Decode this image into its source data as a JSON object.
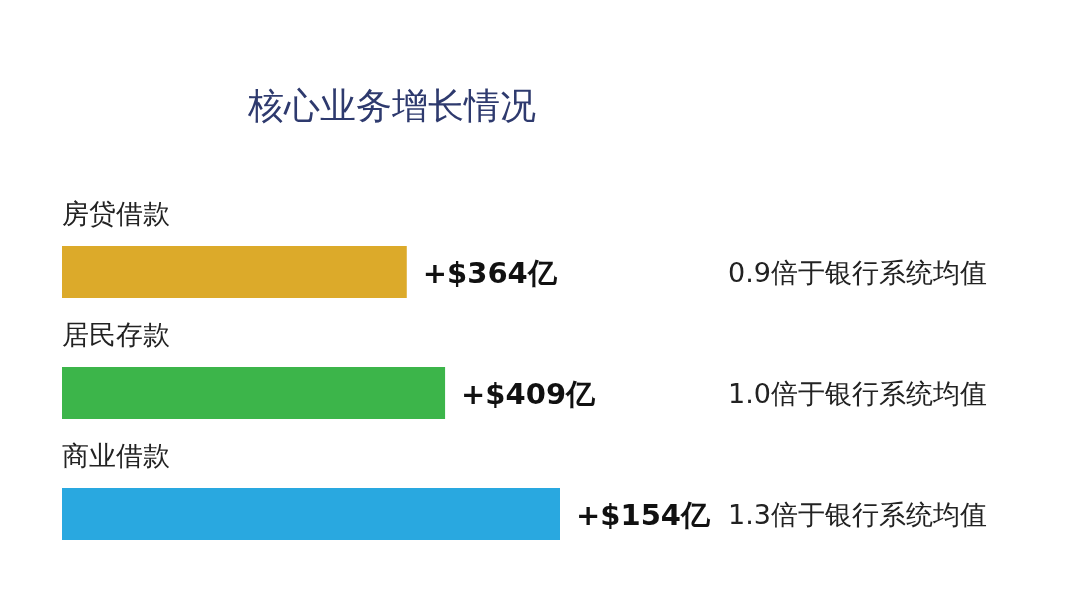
{
  "chart_data": {
    "type": "bar",
    "orientation": "horizontal",
    "title": "核心业务增长情况",
    "categories": [
      "房贷借款",
      "居民存款",
      "商业借款"
    ],
    "values": [
      0.9,
      1.0,
      1.3
    ],
    "colors": [
      "#dcaa2a",
      "#3cb54a",
      "#29a8e0"
    ],
    "value_labels": [
      "0.9倍于银行系统均值",
      "1.0倍于银行系统均值",
      "1.3倍于银行系统均值"
    ],
    "annotations": [
      "+$364亿",
      "+$409亿",
      "+$154亿"
    ]
  }
}
